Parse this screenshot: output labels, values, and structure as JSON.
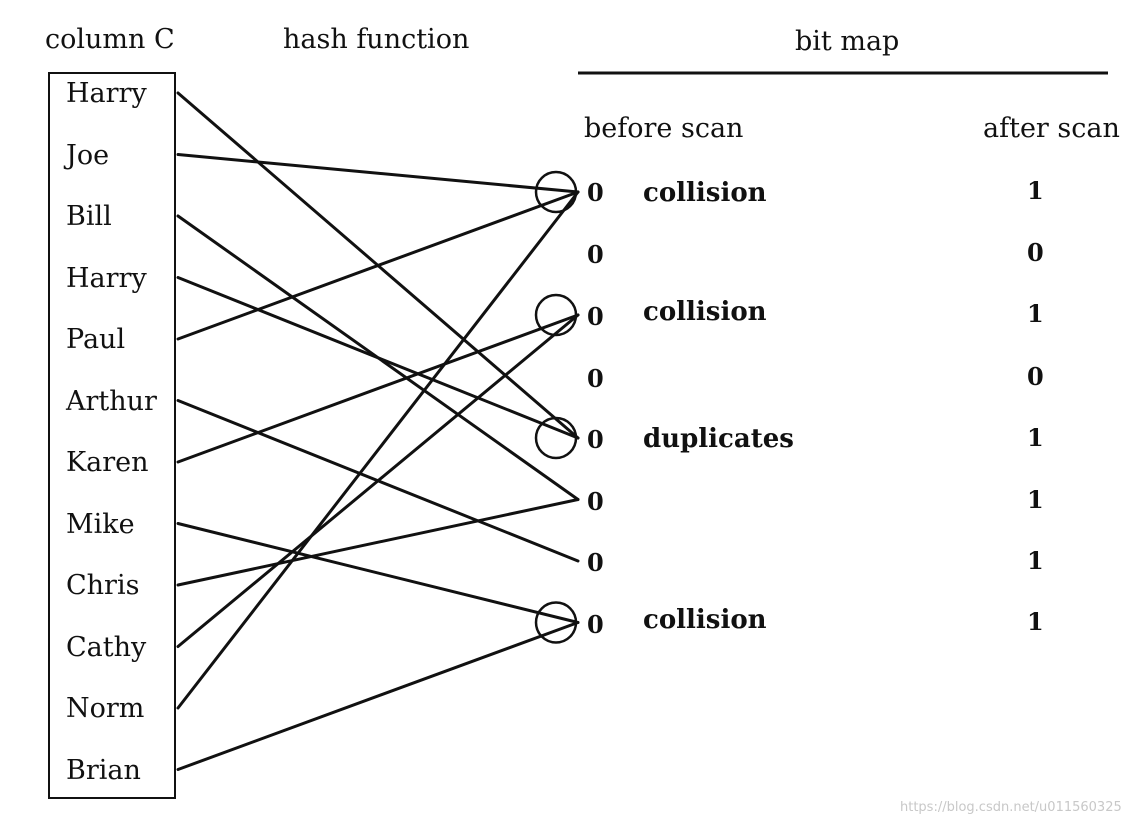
{
  "headers": {
    "column": "column C",
    "hash": "hash function",
    "bitmap": "bit map",
    "before": "before scan",
    "after": "after scan"
  },
  "names": [
    "Harry",
    "Joe",
    "Bill",
    "Harry",
    "Paul",
    "Arthur",
    "Karen",
    "Mike",
    "Chris",
    "Cathy",
    "Norm",
    "Brian"
  ],
  "bits_before": [
    "0",
    "0",
    "0",
    "0",
    "0",
    "0",
    "0",
    "0"
  ],
  "bits_after": [
    "1",
    "0",
    "1",
    "0",
    "1",
    "1",
    "1",
    "1"
  ],
  "labels": {
    "row1": "collision",
    "row3": "collision",
    "row5": "duplicates",
    "row8": "collision"
  },
  "circled_slots": [
    0,
    2,
    4,
    7
  ],
  "mapping": [
    4,
    0,
    5,
    4,
    0,
    6,
    2,
    7,
    5,
    2,
    0,
    7
  ],
  "watermark": "https://blog.csdn.net/u011560325"
}
